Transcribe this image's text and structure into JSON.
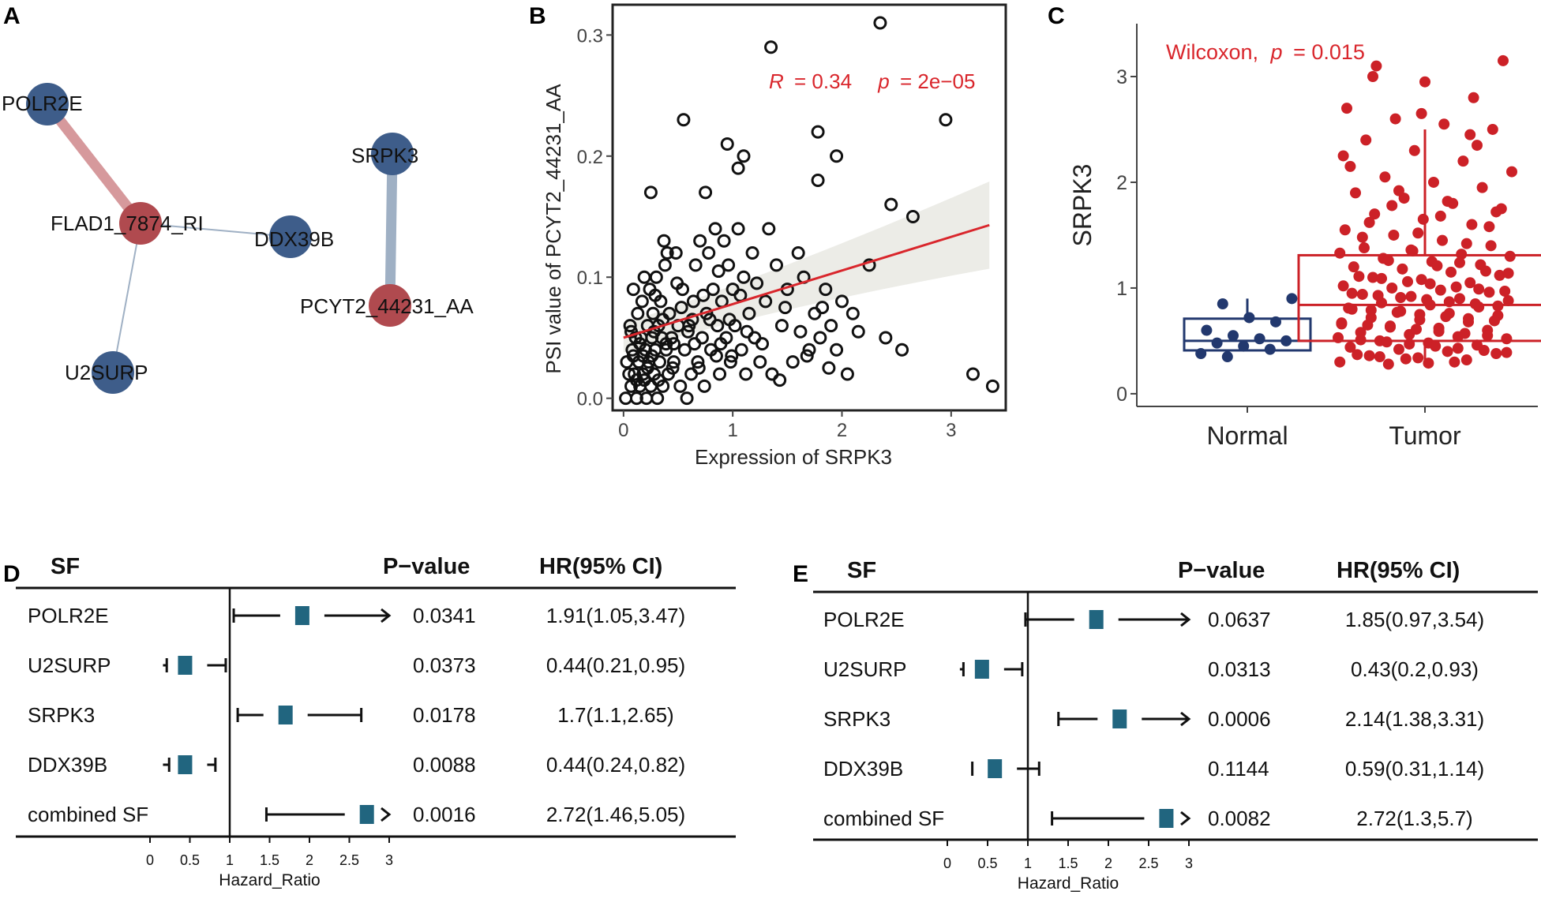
{
  "panel_labels": [
    "A",
    "B",
    "C",
    "D",
    "E"
  ],
  "network": {
    "nodes": [
      {
        "id": "POLR2E",
        "label": "POLR2E",
        "type": "sf"
      },
      {
        "id": "FLAD1",
        "label": "FLAD1_7874_RI",
        "type": "event"
      },
      {
        "id": "DDX39B",
        "label": "DDX39B",
        "type": "sf"
      },
      {
        "id": "U2SURP",
        "label": "U2SURP",
        "type": "sf"
      },
      {
        "id": "SRPK3",
        "label": "SRPK3",
        "type": "sf"
      },
      {
        "id": "PCYT2",
        "label": "PCYT2_44231_AA",
        "type": "event"
      }
    ],
    "edges": [
      {
        "source": "POLR2E",
        "target": "FLAD1",
        "sign": "positive",
        "weight": 3
      },
      {
        "source": "FLAD1",
        "target": "DDX39B",
        "sign": "negative",
        "weight": 1
      },
      {
        "source": "FLAD1",
        "target": "U2SURP",
        "sign": "negative",
        "weight": 1
      },
      {
        "source": "SRPK3",
        "target": "PCYT2",
        "sign": "negative",
        "weight": 3
      }
    ],
    "colors": {
      "sf": "#3e5d8a",
      "event": "#b04a4f",
      "positive_edge": "#d6999c",
      "negative_edge": "#9fb0c4"
    }
  },
  "chart_data": [
    {
      "type": "scatter",
      "panel": "B",
      "xlabel": "Expression of SRPK3",
      "ylabel": "PSI value of PCYT2_44231_AA",
      "xlim": [
        -0.1,
        3.5
      ],
      "ylim": [
        -0.01,
        0.325
      ],
      "xticks": [
        0,
        1,
        2,
        3
      ],
      "yticks": [
        0.0,
        0.1,
        0.2,
        0.3
      ],
      "ytick_labels": [
        "0.0",
        "0.1",
        "0.2",
        "0.3"
      ],
      "annotation": {
        "r_label": "R",
        "r_value": "= 0.34",
        "p_label": "p",
        "p_value": "= 2e−05"
      },
      "fit": {
        "x": [
          0,
          3.35
        ],
        "y": [
          0.05,
          0.143
        ],
        "band_half_start": 0.012,
        "band_half_end": 0.036,
        "color": "#d9262c"
      },
      "points": [
        [
          0.02,
          0.0
        ],
        [
          0.03,
          0.03
        ],
        [
          0.05,
          0.02
        ],
        [
          0.06,
          0.06
        ],
        [
          0.07,
          0.01
        ],
        [
          0.08,
          0.04
        ],
        [
          0.09,
          0.09
        ],
        [
          0.1,
          0.02
        ],
        [
          0.11,
          0.05
        ],
        [
          0.12,
          0.0
        ],
        [
          0.13,
          0.07
        ],
        [
          0.14,
          0.03
        ],
        [
          0.15,
          0.01
        ],
        [
          0.16,
          0.05
        ],
        [
          0.17,
          0.08
        ],
        [
          0.18,
          0.02
        ],
        [
          0.19,
          0.1
        ],
        [
          0.2,
          0.04
        ],
        [
          0.21,
          0.0
        ],
        [
          0.22,
          0.06
        ],
        [
          0.23,
          0.03
        ],
        [
          0.24,
          0.09
        ],
        [
          0.25,
          0.01
        ],
        [
          0.26,
          0.05
        ],
        [
          0.27,
          0.07
        ],
        [
          0.28,
          0.02
        ],
        [
          0.29,
          0.04
        ],
        [
          0.3,
          0.1
        ],
        [
          0.31,
          0.0
        ],
        [
          0.32,
          0.06
        ],
        [
          0.33,
          0.03
        ],
        [
          0.34,
          0.08
        ],
        [
          0.35,
          0.05
        ],
        [
          0.36,
          0.01
        ],
        [
          0.37,
          0.13
        ],
        [
          0.38,
          0.11
        ],
        [
          0.39,
          0.04
        ],
        [
          0.4,
          0.12
        ],
        [
          0.41,
          0.02
        ],
        [
          0.42,
          0.07
        ],
        [
          0.44,
          0.05
        ],
        [
          0.46,
          0.03
        ],
        [
          0.48,
          0.12
        ],
        [
          0.5,
          0.06
        ],
        [
          0.52,
          0.01
        ],
        [
          0.54,
          0.09
        ],
        [
          0.56,
          0.04
        ],
        [
          0.58,
          0.0
        ],
        [
          0.6,
          0.06
        ],
        [
          0.62,
          0.02
        ],
        [
          0.64,
          0.08
        ],
        [
          0.66,
          0.11
        ],
        [
          0.68,
          0.03
        ],
        [
          0.7,
          0.13
        ],
        [
          0.72,
          0.05
        ],
        [
          0.74,
          0.01
        ],
        [
          0.76,
          0.07
        ],
        [
          0.78,
          0.12
        ],
        [
          0.8,
          0.04
        ],
        [
          0.82,
          0.09
        ],
        [
          0.84,
          0.14
        ],
        [
          0.86,
          0.06
        ],
        [
          0.88,
          0.02
        ],
        [
          0.9,
          0.08
        ],
        [
          0.92,
          0.13
        ],
        [
          0.94,
          0.05
        ],
        [
          0.96,
          0.11
        ],
        [
          0.98,
          0.03
        ],
        [
          1.0,
          0.09
        ],
        [
          1.02,
          0.06
        ],
        [
          1.05,
          0.14
        ],
        [
          1.08,
          0.04
        ],
        [
          1.1,
          0.1
        ],
        [
          1.12,
          0.02
        ],
        [
          1.15,
          0.07
        ],
        [
          1.18,
          0.12
        ],
        [
          1.2,
          0.05
        ],
        [
          1.25,
          0.03
        ],
        [
          1.3,
          0.08
        ],
        [
          1.33,
          0.14
        ],
        [
          1.36,
          0.02
        ],
        [
          1.4,
          0.11
        ],
        [
          1.45,
          0.06
        ],
        [
          1.5,
          0.09
        ],
        [
          1.55,
          0.03
        ],
        [
          1.6,
          0.12
        ],
        [
          1.65,
          0.1
        ],
        [
          1.7,
          0.04
        ],
        [
          1.75,
          0.07
        ],
        [
          1.8,
          0.05
        ],
        [
          1.85,
          0.09
        ],
        [
          1.9,
          0.06
        ],
        [
          1.95,
          0.04
        ],
        [
          2.0,
          0.08
        ],
        [
          2.05,
          0.02
        ],
        [
          2.1,
          0.07
        ],
        [
          2.25,
          0.11
        ],
        [
          2.4,
          0.05
        ],
        [
          2.55,
          0.04
        ],
        [
          0.25,
          0.17
        ],
        [
          0.55,
          0.23
        ],
        [
          0.75,
          0.17
        ],
        [
          0.95,
          0.21
        ],
        [
          1.05,
          0.19
        ],
        [
          1.1,
          0.2
        ],
        [
          1.35,
          0.29
        ],
        [
          1.78,
          0.22
        ],
        [
          1.78,
          0.18
        ],
        [
          1.95,
          0.2
        ],
        [
          2.35,
          0.31
        ],
        [
          2.45,
          0.16
        ],
        [
          2.65,
          0.15
        ],
        [
          2.95,
          0.23
        ],
        [
          3.2,
          0.02
        ],
        [
          3.38,
          0.01
        ],
        [
          0.18,
          0.035
        ],
        [
          0.28,
          0.055
        ],
        [
          0.45,
          0.025
        ],
        [
          0.65,
          0.045
        ],
        [
          0.85,
          0.035
        ],
        [
          0.12,
          0.015
        ],
        [
          0.22,
          0.025
        ],
        [
          0.32,
          0.015
        ],
        [
          0.15,
          0.045
        ],
        [
          0.07,
          0.055
        ],
        [
          0.26,
          0.035
        ],
        [
          0.36,
          0.065
        ],
        [
          0.46,
          0.045
        ],
        [
          0.53,
          0.075
        ],
        [
          0.63,
          0.065
        ],
        [
          0.73,
          0.085
        ],
        [
          0.87,
          0.105
        ],
        [
          0.97,
          0.065
        ],
        [
          1.07,
          0.085
        ],
        [
          1.22,
          0.095
        ],
        [
          1.43,
          0.015
        ],
        [
          1.62,
          0.055
        ],
        [
          1.82,
          0.075
        ],
        [
          2.15,
          0.055
        ],
        [
          0.09,
          0.035
        ],
        [
          0.19,
          0.015
        ],
        [
          0.29,
          0.085
        ],
        [
          0.39,
          0.045
        ],
        [
          0.49,
          0.095
        ],
        [
          0.59,
          0.055
        ],
        [
          0.69,
          0.025
        ],
        [
          0.79,
          0.065
        ],
        [
          0.89,
          0.045
        ],
        [
          0.99,
          0.035
        ],
        [
          1.13,
          0.055
        ],
        [
          1.27,
          0.045
        ],
        [
          1.48,
          0.075
        ],
        [
          1.68,
          0.035
        ],
        [
          1.88,
          0.025
        ]
      ]
    },
    {
      "type": "box",
      "panel": "C",
      "ylabel": "SRPK3",
      "ylim": [
        -0.12,
        3.5
      ],
      "yticks": [
        0,
        1,
        2,
        3
      ],
      "annotation": {
        "test": "Wilcoxon,",
        "p_label": "p",
        "p_value": "= 0.015"
      },
      "groups": [
        {
          "name": "Normal",
          "color": "#22386e",
          "q1": 0.41,
          "median": 0.5,
          "q3": 0.71,
          "whisker_low": 0.4,
          "whisker_high": 0.9,
          "points": [
            0.35,
            0.38,
            0.42,
            0.45,
            0.48,
            0.5,
            0.52,
            0.55,
            0.6,
            0.68,
            0.72,
            0.85,
            0.9
          ]
        },
        {
          "name": "Tumor",
          "color": "#cc2127",
          "q1": 0.5,
          "median": 0.84,
          "q3": 1.31,
          "whisker_low": 0.28,
          "whisker_high": 2.5,
          "points": [
            0.28,
            0.3,
            0.32,
            0.34,
            0.36,
            0.38,
            0.4,
            0.42,
            0.44,
            0.46,
            0.48,
            0.5,
            0.52,
            0.54,
            0.56,
            0.58,
            0.6,
            0.62,
            0.64,
            0.66,
            0.68,
            0.7,
            0.72,
            0.74,
            0.76,
            0.78,
            0.8,
            0.82,
            0.84,
            0.86,
            0.88,
            0.9,
            0.92,
            0.94,
            0.96,
            0.98,
            1.0,
            1.02,
            1.05,
            1.08,
            1.1,
            1.12,
            1.15,
            1.18,
            1.2,
            1.22,
            1.25,
            1.28,
            1.3,
            1.32,
            1.35,
            1.38,
            1.4,
            1.45,
            1.5,
            1.55,
            1.6,
            1.65,
            1.7,
            1.75,
            1.8,
            1.85,
            1.9,
            1.95,
            2.0,
            2.05,
            2.1,
            2.2,
            2.3,
            2.4,
            2.5,
            2.55,
            2.6,
            2.7,
            2.8,
            2.95,
            3.1,
            3.15,
            0.3,
            0.33,
            0.37,
            0.41,
            0.45,
            0.49,
            0.53,
            0.57,
            0.61,
            0.65,
            0.69,
            0.73,
            0.77,
            0.81,
            0.85,
            0.89,
            0.93,
            0.97,
            1.01,
            1.06,
            1.11,
            1.16,
            1.21,
            1.26,
            1.33,
            1.42,
            1.52,
            1.62,
            1.72,
            1.82,
            1.92,
            2.15,
            2.35,
            0.29,
            0.35,
            0.39,
            0.43,
            0.47,
            0.51,
            0.55,
            0.59,
            0.63,
            0.67,
            0.71,
            0.75,
            0.79,
            0.83,
            0.87,
            0.91,
            0.95,
            0.99,
            1.04,
            1.09,
            1.14,
            1.24,
            1.36,
            1.48,
            1.58,
            1.68,
            1.78,
            2.25,
            2.45,
            2.65,
            3.0
          ]
        }
      ]
    },
    {
      "type": "forest",
      "panel": "D",
      "header": {
        "sf": "SF",
        "p": "P−value",
        "hr": "HR(95% CI)"
      },
      "xlabel": "Hazard_Ratio",
      "xlim": [
        0,
        3
      ],
      "xticks": [
        0,
        0.5,
        1,
        1.5,
        2,
        2.5,
        3
      ],
      "xtick_labels": [
        "0",
        "0.5",
        "1",
        "1.5",
        "2",
        "2.5",
        "3"
      ],
      "rows": [
        {
          "name": "POLR2E",
          "hr": 1.91,
          "lo": 1.05,
          "hi": 3.47,
          "p": "0.0341",
          "ci": "1.91(1.05,3.47)"
        },
        {
          "name": "U2SURP",
          "hr": 0.44,
          "lo": 0.21,
          "hi": 0.95,
          "p": "0.0373",
          "ci": "0.44(0.21,0.95)"
        },
        {
          "name": "SRPK3",
          "hr": 1.7,
          "lo": 1.1,
          "hi": 2.65,
          "p": "0.0178",
          "ci": "1.7(1.1,2.65)"
        },
        {
          "name": "DDX39B",
          "hr": 0.44,
          "lo": 0.24,
          "hi": 0.82,
          "p": "0.0088",
          "ci": "0.44(0.24,0.82)"
        },
        {
          "name": "combined SF",
          "hr": 2.72,
          "lo": 1.46,
          "hi": 5.05,
          "p": "0.0016",
          "ci": "2.72(1.46,5.05)"
        }
      ]
    },
    {
      "type": "forest",
      "panel": "E",
      "header": {
        "sf": "SF",
        "p": "P−value",
        "hr": "HR(95% CI)"
      },
      "xlabel": "Hazard_Ratio",
      "xlim": [
        0,
        3
      ],
      "xticks": [
        0,
        0.5,
        1,
        1.5,
        2,
        2.5,
        3
      ],
      "xtick_labels": [
        "0",
        "0.5",
        "1",
        "1.5",
        "2",
        "2.5",
        "3"
      ],
      "rows": [
        {
          "name": "POLR2E",
          "hr": 1.85,
          "lo": 0.97,
          "hi": 3.54,
          "p": "0.0637",
          "ci": "1.85(0.97,3.54)"
        },
        {
          "name": "U2SURP",
          "hr": 0.43,
          "lo": 0.2,
          "hi": 0.93,
          "p": "0.0313",
          "ci": "0.43(0.2,0.93)"
        },
        {
          "name": "SRPK3",
          "hr": 2.14,
          "lo": 1.38,
          "hi": 3.31,
          "p": "0.0006",
          "ci": "2.14(1.38,3.31)"
        },
        {
          "name": "DDX39B",
          "hr": 0.59,
          "lo": 0.31,
          "hi": 1.14,
          "p": "0.1144",
          "ci": "0.59(0.31,1.14)"
        },
        {
          "name": "combined SF",
          "hr": 2.72,
          "lo": 1.3,
          "hi": 5.7,
          "p": "0.0082",
          "ci": "2.72(1.3,5.7)"
        }
      ]
    }
  ],
  "colors": {
    "box_marker": "#21657f",
    "text_red": "#d9262c"
  }
}
